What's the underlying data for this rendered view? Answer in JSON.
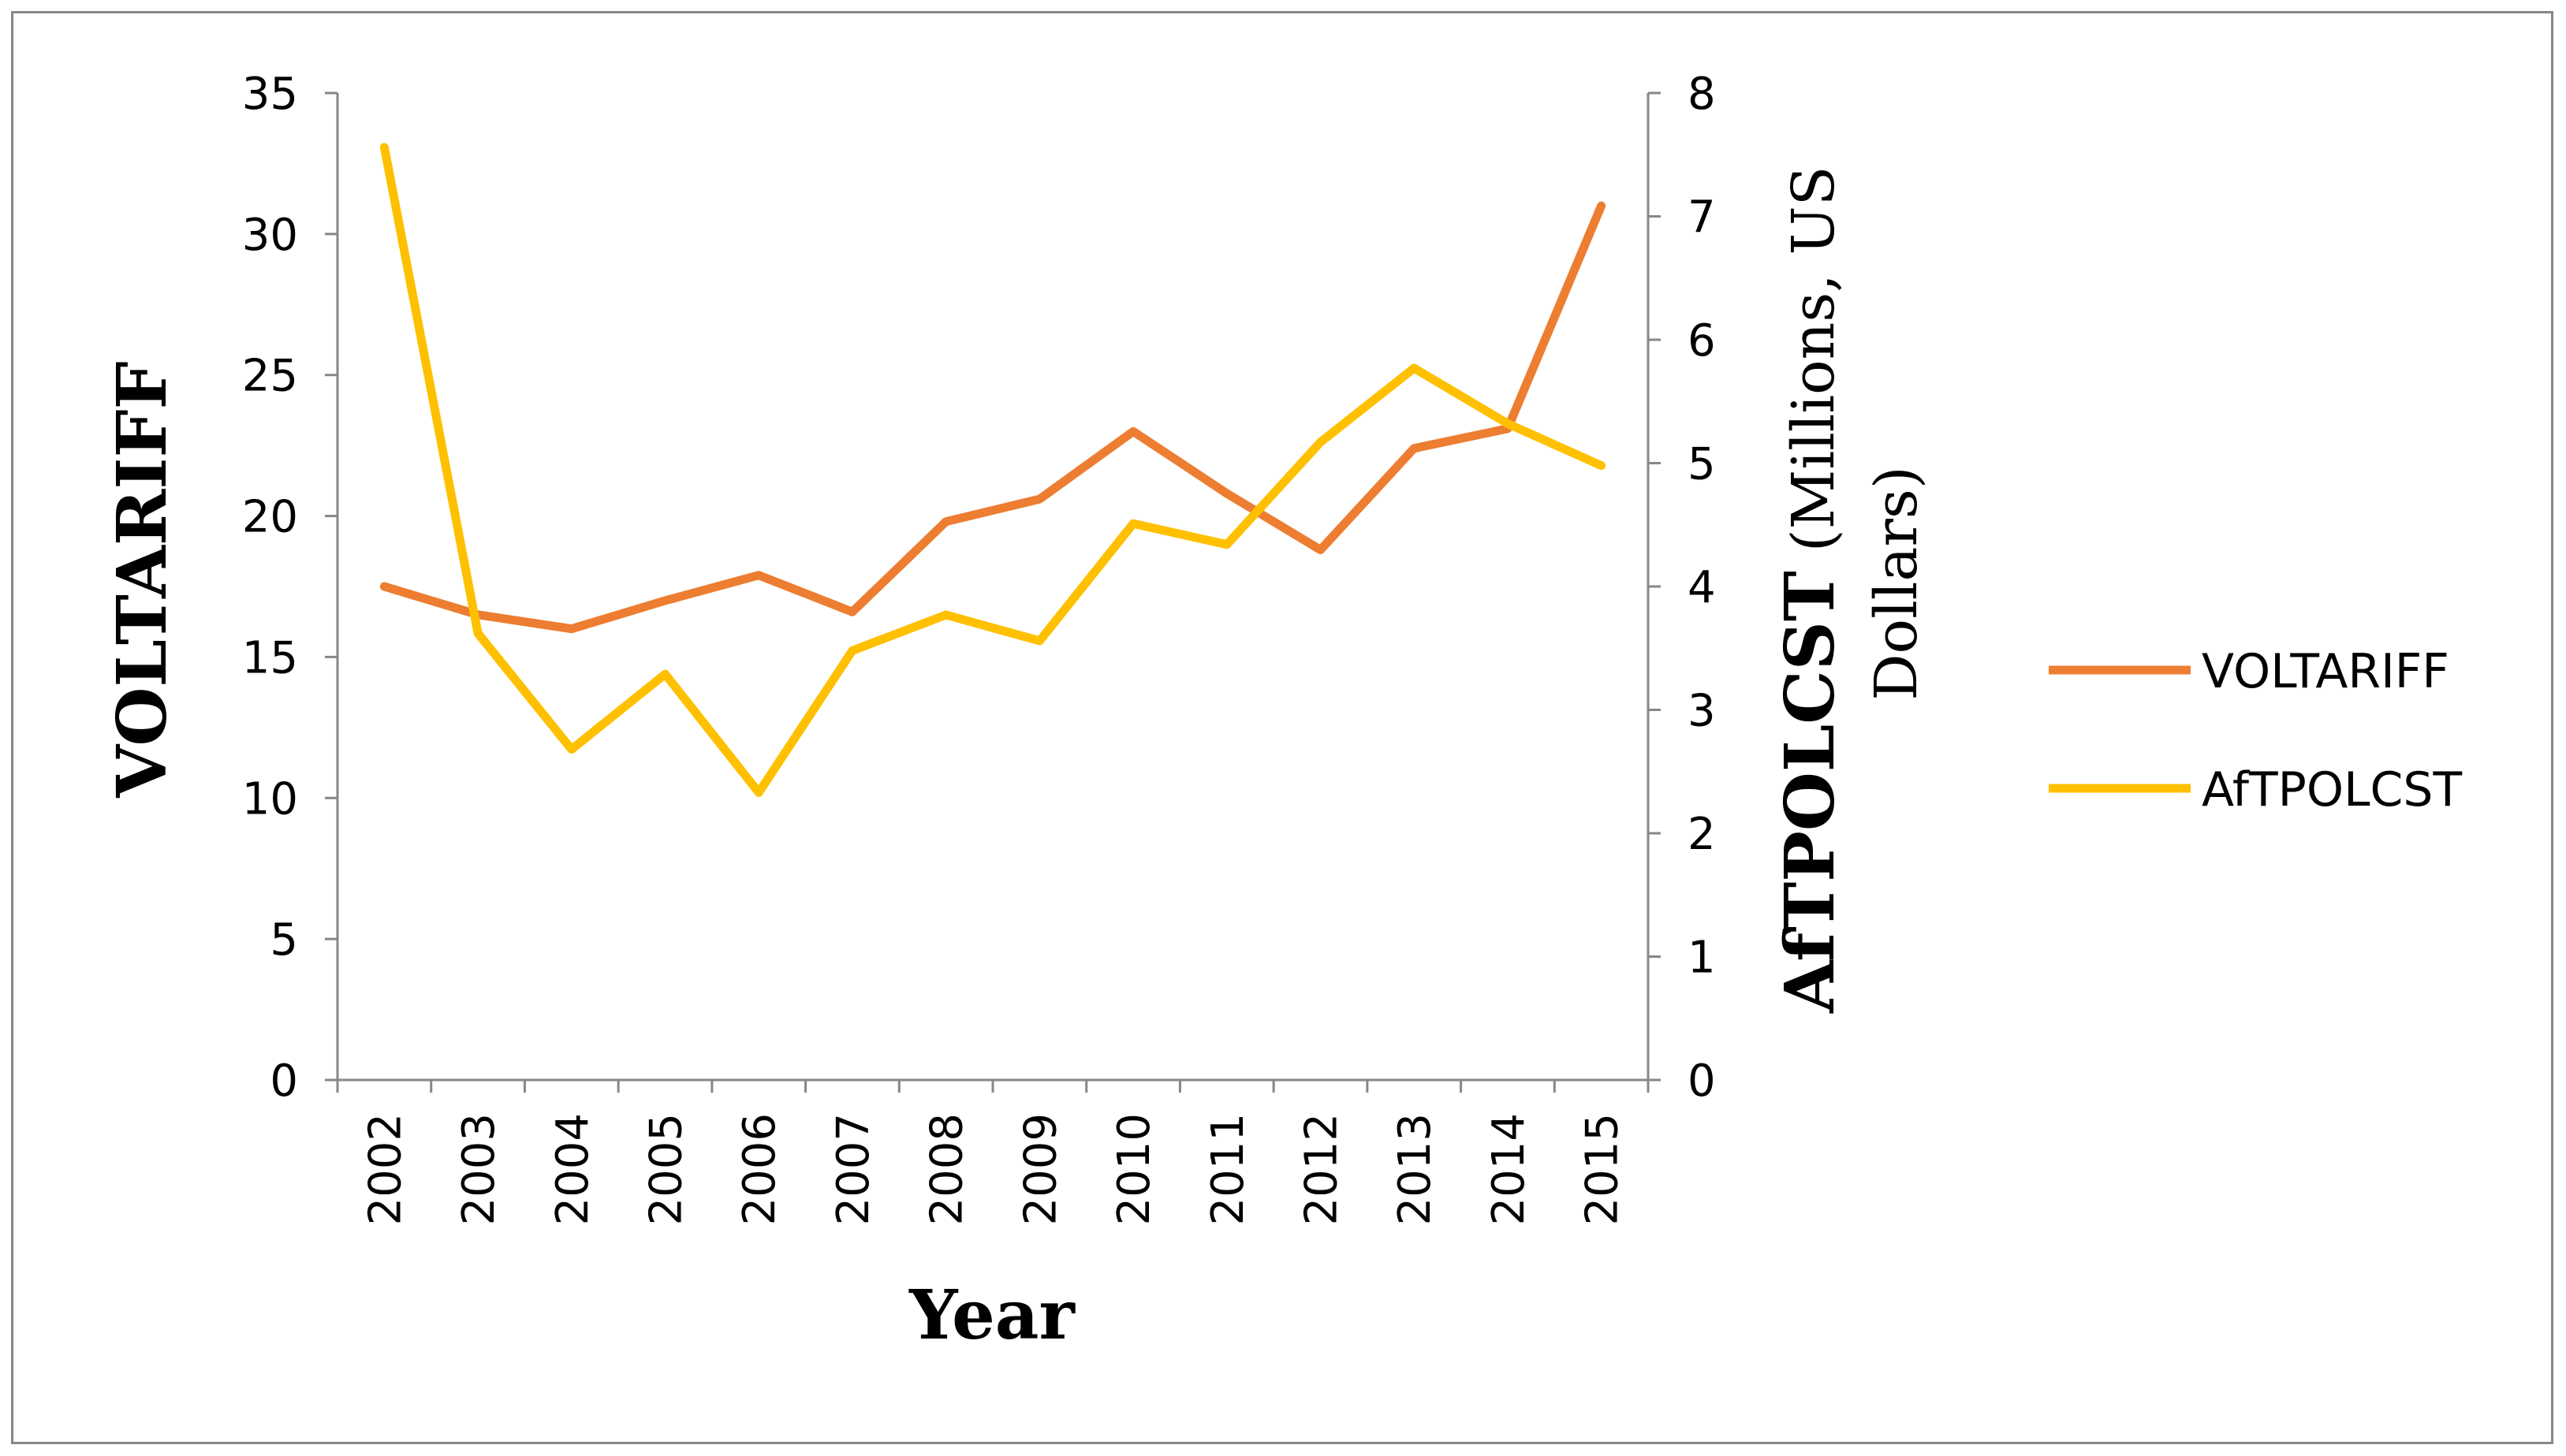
{
  "chart_data": {
    "type": "line",
    "categories": [
      "2002",
      "2003",
      "2004",
      "2005",
      "2006",
      "2007",
      "2008",
      "2009",
      "2010",
      "2011",
      "2012",
      "2013",
      "2014",
      "2015"
    ],
    "series": [
      {
        "name": "VOLTARIFF",
        "axis": "left",
        "color": "#ED7D31",
        "values": [
          17.5,
          16.5,
          16.0,
          17.0,
          17.9,
          16.6,
          19.8,
          20.6,
          23.0,
          20.8,
          18.8,
          22.4,
          23.1,
          31.0
        ]
      },
      {
        "name": "AfTPOLCST",
        "axis": "right",
        "color": "#FFC000",
        "values": [
          7.56,
          3.62,
          2.68,
          3.29,
          2.33,
          3.48,
          3.77,
          3.56,
          4.51,
          4.34,
          5.17,
          5.77,
          5.32,
          4.98
        ]
      }
    ],
    "xlabel": "Year",
    "ylabel": "VOLTARIFF",
    "y2label_bold": "AfTPOLCST",
    "y2label_rest_line1": "(Millions, US",
    "y2label_rest_line2": "Dollars)",
    "ylim": [
      0,
      35
    ],
    "y2lim": [
      0,
      8
    ],
    "yticks": [
      "0",
      "5",
      "10",
      "15",
      "20",
      "25",
      "30",
      "35"
    ],
    "y2ticks": [
      "0",
      "1",
      "2",
      "3",
      "4",
      "5",
      "6",
      "7",
      "8"
    ],
    "legend_position": "right",
    "grid": false
  }
}
